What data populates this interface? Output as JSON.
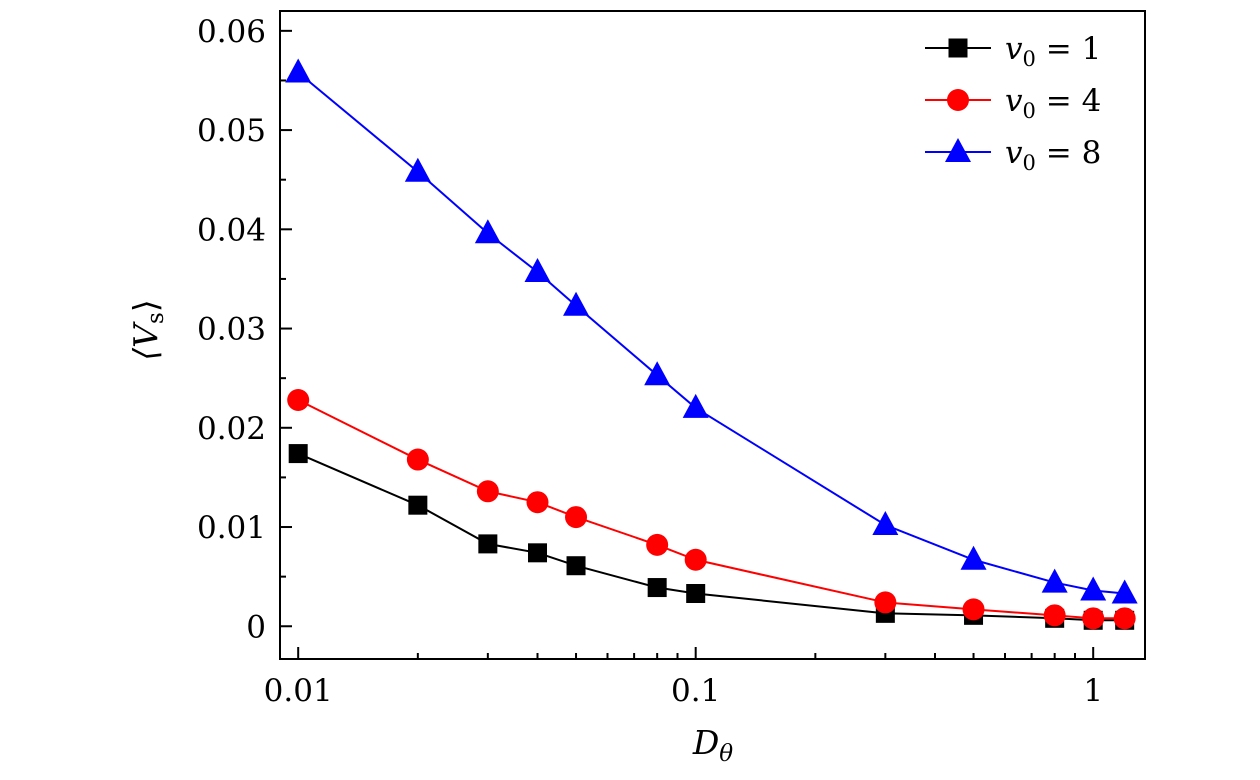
{
  "chart_data": {
    "type": "line",
    "xscale": "log",
    "xlabel_main": "D",
    "xlabel_sub": "θ",
    "ylabel_left": "⟨V",
    "ylabel_sub": "s",
    "ylabel_right": "⟩",
    "xlim": [
      0.009,
      1.35
    ],
    "ylim": [
      -0.0033,
      0.062
    ],
    "xticks": [
      {
        "value": 0.01,
        "label": "0.01"
      },
      {
        "value": 0.1,
        "label": "0.1"
      },
      {
        "value": 1,
        "label": "1"
      }
    ],
    "yticks": [
      {
        "value": 0,
        "label": "0"
      },
      {
        "value": 0.01,
        "label": "0.01"
      },
      {
        "value": 0.02,
        "label": "0.02"
      },
      {
        "value": 0.03,
        "label": "0.03"
      },
      {
        "value": 0.04,
        "label": "0.04"
      },
      {
        "value": 0.05,
        "label": "0.05"
      },
      {
        "value": 0.06,
        "label": "0.06"
      }
    ],
    "x": [
      0.01,
      0.02,
      0.03,
      0.04,
      0.05,
      0.08,
      0.1,
      0.3,
      0.5,
      0.8,
      1.0,
      1.2
    ],
    "series": [
      {
        "legend_var": "v",
        "legend_sub": "0",
        "legend_value": "= 1",
        "color": "#000000",
        "marker": "square",
        "values": [
          0.0174,
          0.0122,
          0.0083,
          0.0074,
          0.0061,
          0.0039,
          0.0033,
          0.0013,
          0.0011,
          0.0008,
          0.0006,
          0.0006
        ]
      },
      {
        "legend_var": "v",
        "legend_sub": "0",
        "legend_value": "= 4",
        "color": "#ff0000",
        "marker": "circle",
        "values": [
          0.0228,
          0.0168,
          0.0136,
          0.0125,
          0.011,
          0.0082,
          0.0067,
          0.0024,
          0.0017,
          0.0011,
          0.0008,
          0.0008
        ]
      },
      {
        "legend_var": "v",
        "legend_sub": "0",
        "legend_value": "= 8",
        "color": "#0000ff",
        "marker": "triangle",
        "values": [
          0.0558,
          0.0458,
          0.0396,
          0.0357,
          0.0323,
          0.0253,
          0.022,
          0.0102,
          0.0067,
          0.0044,
          0.0036,
          0.0033
        ]
      }
    ],
    "legend_position": "top-right",
    "grid": false
  }
}
